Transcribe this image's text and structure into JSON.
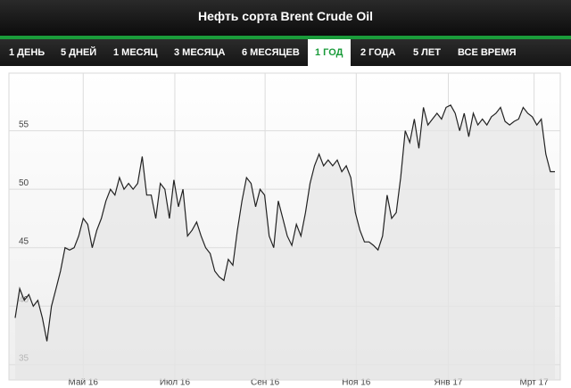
{
  "tabs": [
    "1 ДЕНЬ",
    "5 ДНЕЙ",
    "1 МЕСЯЦ",
    "3 МЕСЯЦА",
    "6 МЕСЯЦЕВ",
    "1 ГОД",
    "2 ГОДА",
    "5 ЛЕТ",
    "ВСЕ ВРЕМЯ"
  ],
  "selected_tab": 5,
  "chart_data": {
    "type": "area",
    "title": "Нефть сорта Brent Crude Oil",
    "color": "#222222",
    "grid": true,
    "values": [
      39,
      41.5,
      40.5,
      41,
      40,
      40.5,
      39,
      37,
      40,
      41.5,
      43,
      45,
      44.8,
      45,
      46,
      47.5,
      47,
      45,
      46.5,
      47.5,
      49,
      50,
      49.5,
      51,
      50,
      50.5,
      50,
      50.5,
      52.8,
      49.5,
      49.5,
      47.5,
      50.5,
      50,
      47.5,
      50.8,
      48.5,
      50,
      46,
      46.5,
      47.2,
      46,
      45,
      44.5,
      43,
      42.5,
      42.2,
      44,
      43.5,
      46.5,
      49,
      51,
      50.5,
      48.5,
      50,
      49.5,
      46,
      45,
      49,
      47.5,
      46,
      45.2,
      47,
      46,
      48,
      50.5,
      52,
      53,
      52,
      52.5,
      52,
      52.5,
      51.5,
      52,
      51,
      48,
      46.5,
      45.5,
      45.5,
      45.2,
      44.8,
      46,
      49.5,
      47.5,
      48,
      51,
      55,
      54,
      56,
      53.5,
      57,
      55.5,
      56,
      56.5,
      56,
      57,
      57.2,
      56.5,
      55,
      56.5,
      54.5,
      56.5,
      55.5,
      56,
      55.5,
      56.2,
      56.5,
      57,
      55.8,
      55.5,
      55.8,
      56,
      57,
      56.5,
      56.2,
      55.5,
      56,
      53,
      51.5,
      51.5
    ],
    "xlim": [
      0,
      119
    ],
    "xticks": [
      {
        "value": 15,
        "label": "Май 16"
      },
      {
        "value": 35.2,
        "label": "Июл 16"
      },
      {
        "value": 55.1,
        "label": "Сен 16"
      },
      {
        "value": 75.2,
        "label": "Ноя 16"
      },
      {
        "value": 95.5,
        "label": "Янв 17"
      },
      {
        "value": 114.4,
        "label": "Мрт 17"
      }
    ],
    "ylim": [
      34.3,
      59.7
    ],
    "yticks": [
      35,
      40,
      45,
      50,
      55
    ]
  }
}
